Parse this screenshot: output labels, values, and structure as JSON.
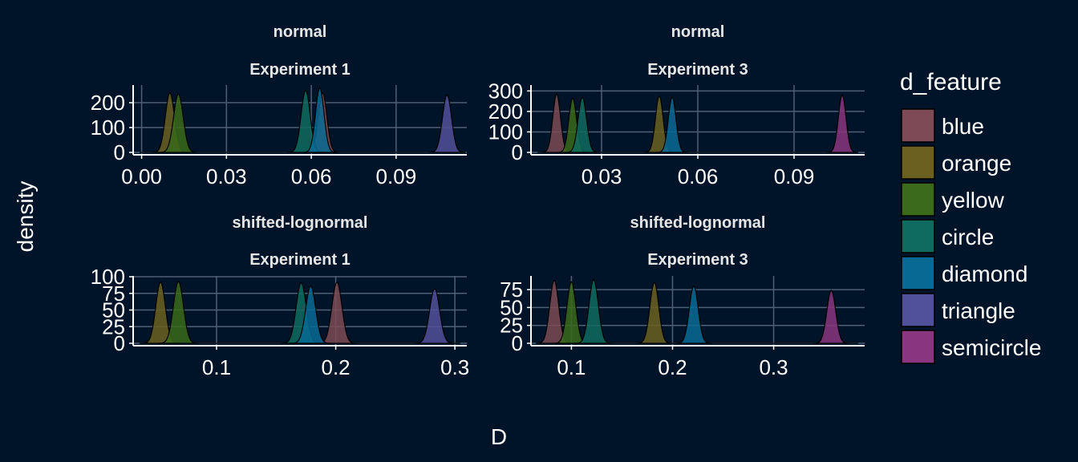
{
  "chart_data": {
    "type": "area",
    "xlabel": "D",
    "ylabel": "density",
    "legend": {
      "title": "d_feature",
      "placement": "right",
      "items": [
        {
          "label": "blue",
          "color": "#7d4a55"
        },
        {
          "label": "orange",
          "color": "#6b6020"
        },
        {
          "label": "yellow",
          "color": "#3a6a1a"
        },
        {
          "label": "circle",
          "color": "#0f6b5f"
        },
        {
          "label": "diamond",
          "color": "#086a94"
        },
        {
          "label": "triangle",
          "color": "#51509a"
        },
        {
          "label": "semicircle",
          "color": "#8a357f"
        }
      ]
    },
    "panels": [
      {
        "title": "normal",
        "subtitle": "Experiment 1",
        "xlim": [
          -0.003,
          0.115
        ],
        "ylim": [
          0,
          268
        ],
        "xticks": [
          {
            "v": 0.0,
            "label": "0.00"
          },
          {
            "v": 0.03,
            "label": "0.03"
          },
          {
            "v": 0.06,
            "label": "0.06"
          },
          {
            "v": 0.09,
            "label": "0.09"
          }
        ],
        "yticks": [
          {
            "v": 0,
            "label": "0"
          },
          {
            "v": 100,
            "label": "100"
          },
          {
            "v": 200,
            "label": "200"
          }
        ],
        "series": [
          {
            "feature": "blue",
            "center": 0.064,
            "sd": 0.0015,
            "peak": 240
          },
          {
            "feature": "orange",
            "center": 0.01,
            "sd": 0.0016,
            "peak": 240
          },
          {
            "feature": "yellow",
            "center": 0.013,
            "sd": 0.0017,
            "peak": 235
          },
          {
            "feature": "circle",
            "center": 0.058,
            "sd": 0.0016,
            "peak": 250
          },
          {
            "feature": "diamond",
            "center": 0.063,
            "sd": 0.0015,
            "peak": 260
          },
          {
            "feature": "triangle",
            "center": 0.108,
            "sd": 0.0016,
            "peak": 232
          }
        ]
      },
      {
        "title": "normal",
        "subtitle": "Experiment 3",
        "xlim": [
          0.008,
          0.112
        ],
        "ylim": [
          0,
          325
        ],
        "xticks": [
          {
            "v": 0.03,
            "label": "0.03"
          },
          {
            "v": 0.06,
            "label": "0.06"
          },
          {
            "v": 0.09,
            "label": "0.09"
          }
        ],
        "yticks": [
          {
            "v": 0,
            "label": "0"
          },
          {
            "v": 100,
            "label": "100"
          },
          {
            "v": 200,
            "label": "200"
          },
          {
            "v": 300,
            "label": "300"
          }
        ],
        "series": [
          {
            "feature": "blue",
            "center": 0.016,
            "sd": 0.0012,
            "peak": 285
          },
          {
            "feature": "orange",
            "center": 0.048,
            "sd": 0.0012,
            "peak": 275
          },
          {
            "feature": "yellow",
            "center": 0.021,
            "sd": 0.0012,
            "peak": 265
          },
          {
            "feature": "circle",
            "center": 0.024,
            "sd": 0.0013,
            "peak": 270
          },
          {
            "feature": "diamond",
            "center": 0.052,
            "sd": 0.0012,
            "peak": 270
          },
          {
            "feature": "semicircle",
            "center": 0.105,
            "sd": 0.0012,
            "peak": 280
          }
        ]
      },
      {
        "title": "shifted-lognormal",
        "subtitle": "Experiment 1",
        "xlim": [
          0.03,
          0.31
        ],
        "ylim": [
          0,
          100
        ],
        "xticks": [
          {
            "v": 0.1,
            "label": "0.1"
          },
          {
            "v": 0.2,
            "label": "0.2"
          },
          {
            "v": 0.3,
            "label": "0.3"
          }
        ],
        "yticks": [
          {
            "v": 0,
            "label": "0"
          },
          {
            "v": 25,
            "label": "25"
          },
          {
            "v": 50,
            "label": "50"
          },
          {
            "v": 75,
            "label": "75"
          },
          {
            "v": 100,
            "label": "100"
          }
        ],
        "series": [
          {
            "feature": "blue",
            "center": 0.201,
            "sd": 0.0042,
            "peak": 92
          },
          {
            "feature": "orange",
            "center": 0.053,
            "sd": 0.004,
            "peak": 92
          },
          {
            "feature": "yellow",
            "center": 0.068,
            "sd": 0.0042,
            "peak": 93
          },
          {
            "feature": "circle",
            "center": 0.171,
            "sd": 0.0042,
            "peak": 91
          },
          {
            "feature": "diamond",
            "center": 0.179,
            "sd": 0.0042,
            "peak": 86
          },
          {
            "feature": "triangle",
            "center": 0.283,
            "sd": 0.0042,
            "peak": 82
          }
        ]
      },
      {
        "title": "shifted-lognormal",
        "subtitle": "Experiment 3",
        "xlim": [
          0.06,
          0.39
        ],
        "ylim": [
          0,
          93
        ],
        "xticks": [
          {
            "v": 0.1,
            "label": "0.1"
          },
          {
            "v": 0.2,
            "label": "0.2"
          },
          {
            "v": 0.3,
            "label": "0.3"
          }
        ],
        "yticks": [
          {
            "v": 0,
            "label": "0"
          },
          {
            "v": 25,
            "label": "25"
          },
          {
            "v": 50,
            "label": "50"
          },
          {
            "v": 75,
            "label": "75"
          }
        ],
        "series": [
          {
            "feature": "blue",
            "center": 0.083,
            "sd": 0.0044,
            "peak": 88
          },
          {
            "feature": "orange",
            "center": 0.182,
            "sd": 0.0044,
            "peak": 85
          },
          {
            "feature": "yellow",
            "center": 0.1,
            "sd": 0.0044,
            "peak": 86
          },
          {
            "feature": "circle",
            "center": 0.122,
            "sd": 0.0046,
            "peak": 89
          },
          {
            "feature": "diamond",
            "center": 0.221,
            "sd": 0.0044,
            "peak": 80
          },
          {
            "feature": "semicircle",
            "center": 0.357,
            "sd": 0.0044,
            "peak": 74
          }
        ]
      }
    ]
  }
}
